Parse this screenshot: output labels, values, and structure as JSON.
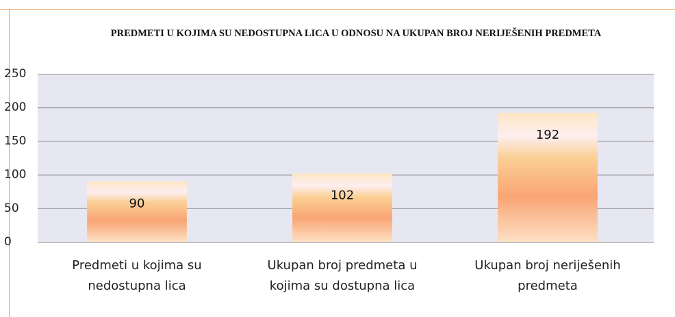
{
  "chart_data": {
    "type": "bar",
    "title": "PREDMETI U KOJIMA SU NEDOSTUPNA LICA U ODNOSU NA UKUPAN BROJ NERIJEŠENIH PREDMETA",
    "categories": [
      "Predmeti u kojima su nedostupna lica",
      "Ukupan broj predmeta u kojima su dostupna lica",
      "Ukupan broj neriješenih predmeta"
    ],
    "values": [
      90,
      102,
      192
    ],
    "ylim": [
      0,
      250
    ],
    "yticks": [
      0,
      50,
      100,
      150,
      200,
      250
    ],
    "grid": true
  }
}
